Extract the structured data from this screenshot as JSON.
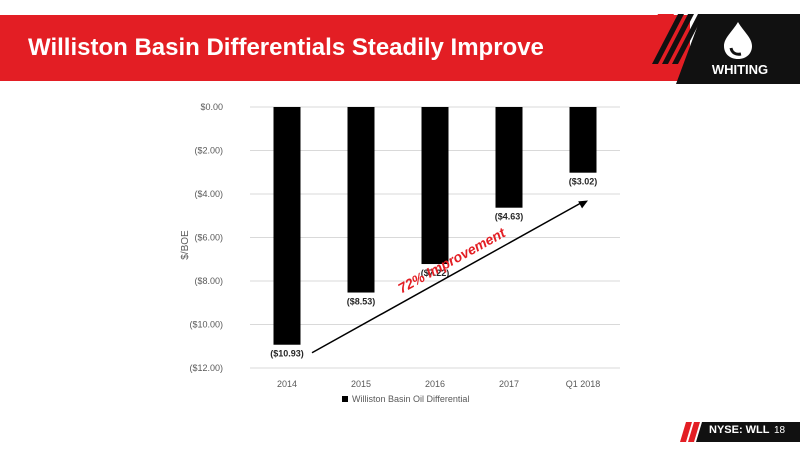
{
  "slide": {
    "title": "Williston Basin Differentials Steadily Improve",
    "company": "WHITING",
    "ticker": "NYSE: WLL",
    "page_number": "18",
    "brand_color": "#e31e24"
  },
  "chart_data": {
    "type": "bar",
    "title": "",
    "xlabel": "",
    "ylabel": "$/BOE",
    "categories": [
      "2014",
      "2015",
      "2016",
      "2017",
      "Q1 2018"
    ],
    "series": [
      {
        "name": "Williston Basin Oil Differential",
        "values": [
          -10.93,
          -8.53,
          -7.22,
          -4.63,
          -3.02
        ],
        "color": "#d9d9d9"
      }
    ],
    "data_labels": [
      "($10.93)",
      "($8.53)",
      "($7.22)",
      "($4.63)",
      "($3.02)"
    ],
    "ylim": [
      -12,
      0
    ],
    "yticks": [
      0,
      -2,
      -4,
      -6,
      -8,
      -10,
      -12
    ],
    "ytick_labels": [
      "$0.00",
      "($2.00)",
      "($4.00)",
      "($6.00)",
      "($8.00)",
      "($10.00)",
      "($12.00)"
    ],
    "grid": true,
    "legend_position": "bottom",
    "annotation": {
      "text": "72% Improvement",
      "color": "#e31e24"
    }
  }
}
